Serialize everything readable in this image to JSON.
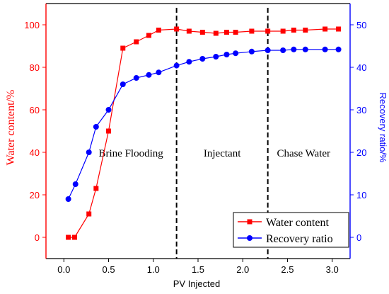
{
  "chart_data": {
    "type": "line",
    "title": "",
    "xlabel": "PV Injected",
    "ylabel_left": "Water content/%",
    "ylabel_right": "Recovery ratio/%",
    "xlim": [
      -0.2,
      3.2
    ],
    "ylim_left": [
      -10,
      110
    ],
    "ylim_right": [
      -5,
      55
    ],
    "x_ticks": [
      0.0,
      0.5,
      1.0,
      1.5,
      2.0,
      2.5,
      3.0
    ],
    "x_tick_labels": [
      "0.0",
      "0.5",
      "1.0",
      "1.5",
      "2.0",
      "2.5",
      "3.0"
    ],
    "y_left_ticks": [
      0,
      20,
      40,
      60,
      80,
      100
    ],
    "y_left_tick_labels": [
      "0",
      "20",
      "40",
      "60",
      "80",
      "100"
    ],
    "y_right_ticks": [
      0,
      10,
      20,
      30,
      40,
      50
    ],
    "y_right_tick_labels": [
      "0",
      "10",
      "20",
      "30",
      "40",
      "50"
    ],
    "grid": false,
    "colors": {
      "water": "#ff0000",
      "recovery": "#0000ff",
      "axis": "#000000"
    },
    "phase_dividers": [
      1.26,
      2.28
    ],
    "phase_labels": [
      {
        "text": "Brine Flooding",
        "x": 0.75,
        "y_left": 40
      },
      {
        "text": "Injectant",
        "x": 1.77,
        "y_left": 40
      },
      {
        "text": "Chase Water",
        "x": 2.68,
        "y_left": 40
      }
    ],
    "legend": {
      "placement": "bottom-right"
    },
    "series": [
      {
        "name": "Water content",
        "axis": "left",
        "marker": "square",
        "color": "#ff0000",
        "x": [
          0.05,
          0.12,
          0.28,
          0.36,
          0.5,
          0.66,
          0.81,
          0.95,
          1.06,
          1.26,
          1.4,
          1.55,
          1.7,
          1.82,
          1.92,
          2.1,
          2.28,
          2.45,
          2.57,
          2.7,
          2.92,
          3.07
        ],
        "y": [
          0,
          0,
          11,
          23,
          50,
          89,
          92,
          95,
          97.5,
          98,
          97,
          96.5,
          96,
          96.5,
          96.5,
          97,
          97,
          97,
          97.5,
          97.5,
          98,
          98
        ]
      },
      {
        "name": "Recovery ratio",
        "axis": "right",
        "marker": "circle",
        "color": "#0000ff",
        "x": [
          0.05,
          0.13,
          0.28,
          0.36,
          0.5,
          0.66,
          0.81,
          0.95,
          1.06,
          1.26,
          1.4,
          1.55,
          1.7,
          1.82,
          1.92,
          2.1,
          2.28,
          2.45,
          2.57,
          2.7,
          2.92,
          3.07
        ],
        "y": [
          9,
          12.5,
          20,
          26,
          30,
          36,
          37.5,
          38.2,
          38.8,
          40.4,
          41.3,
          42,
          42.5,
          43,
          43.3,
          43.7,
          44,
          44,
          44.2,
          44.2,
          44.2,
          44.2
        ]
      }
    ]
  }
}
